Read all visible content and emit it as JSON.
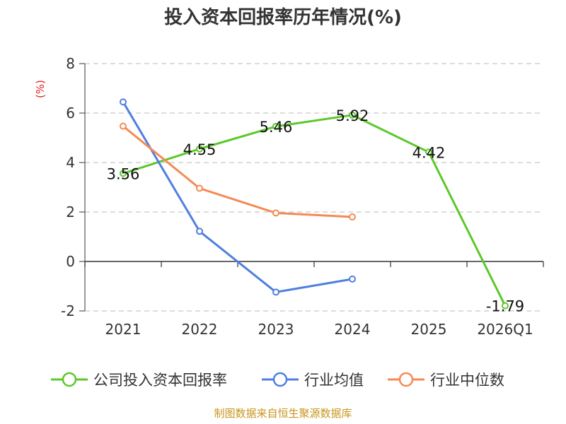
{
  "chart_data": {
    "type": "line",
    "title": "投入资本回报率历年情况(%)",
    "ylabel": "(%)",
    "xlabel": "",
    "ylim": [
      -2,
      8
    ],
    "yticks": [
      -2,
      0,
      2,
      4,
      6,
      8
    ],
    "grid": true,
    "categories": [
      "2021",
      "2022",
      "2023",
      "2024",
      "2025",
      "2026Q1"
    ],
    "series": [
      {
        "name": "公司投入资本回报率",
        "color": "#5cc82a",
        "values": [
          3.56,
          4.55,
          5.46,
          5.92,
          4.42,
          -1.79
        ],
        "labels": [
          "3.56",
          "4.55",
          "5.46",
          "5.92",
          "4.42",
          "-1.79"
        ]
      },
      {
        "name": "行业均值",
        "color": "#4f7fe0",
        "values": [
          6.45,
          1.22,
          -1.24,
          -0.71,
          null,
          null
        ]
      },
      {
        "name": "行业中位数",
        "color": "#f58a55",
        "values": [
          5.47,
          2.96,
          1.96,
          1.8,
          null,
          null
        ]
      }
    ],
    "legend_position": "bottom",
    "source": "制图数据来自恒生聚源数据库"
  }
}
